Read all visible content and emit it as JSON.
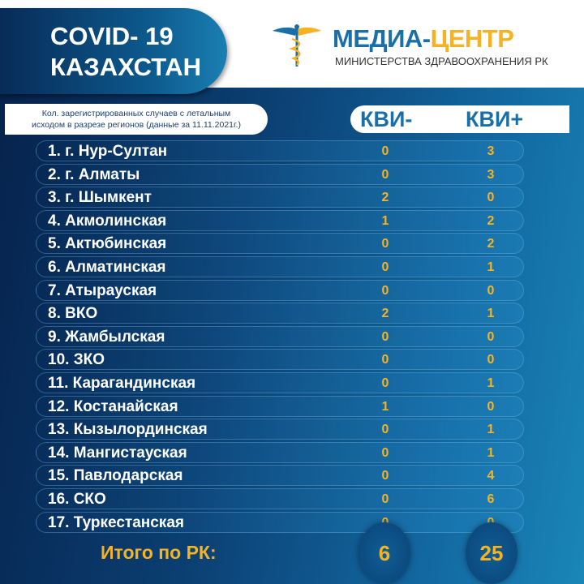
{
  "header": {
    "title_line1": "COVID- 19",
    "title_line2": "КАЗАХСТАН",
    "brand_part1": "МЕДИА-",
    "brand_part2": "ЦЕНТР",
    "brand_sub": "МИНИСТЕРСТВА ЗДРАВООХРАНЕНИЯ РК",
    "logo_icon": "caduceus-icon"
  },
  "description": {
    "line1": "Кол. зарегистрированных случаев с летальным",
    "line2": "исходом в разрезе регионов  (данные за 11.11.2021г.)"
  },
  "columns": {
    "kvi_minus": "КВИ-",
    "kvi_plus": "КВИ+"
  },
  "rows": [
    {
      "region": "1. г. Нур-Султан",
      "minus": "0",
      "plus": "3"
    },
    {
      "region": "2. г. Алматы",
      "minus": "0",
      "plus": "3"
    },
    {
      "region": "3. г. Шымкент",
      "minus": "2",
      "plus": "0"
    },
    {
      "region": "4. Акмолинская",
      "minus": "1",
      "plus": "2"
    },
    {
      "region": "5. Актюбинская",
      "minus": "0",
      "plus": "2"
    },
    {
      "region": "6. Алматинская",
      "minus": "0",
      "plus": "1"
    },
    {
      "region": "7. Атырауская",
      "minus": "0",
      "plus": "0"
    },
    {
      "region": "8. ВКО",
      "minus": "2",
      "plus": "1"
    },
    {
      "region": "9. Жамбылская",
      "minus": "0",
      "plus": "0"
    },
    {
      "region": "10. ЗКО",
      "minus": "0",
      "plus": "0"
    },
    {
      "region": "11. Карагандинская",
      "minus": "0",
      "plus": "1"
    },
    {
      "region": "12. Костанайская",
      "minus": "1",
      "plus": "0"
    },
    {
      "region": "13. Кызылординская",
      "minus": "0",
      "plus": "1"
    },
    {
      "region": "14. Мангистауская",
      "minus": "0",
      "plus": "1"
    },
    {
      "region": "15. Павлодарская",
      "minus": "0",
      "plus": "4"
    },
    {
      "region": "16. СКО",
      "minus": "0",
      "plus": "6"
    },
    {
      "region": "17. Туркестанская",
      "minus": "0",
      "plus": "0"
    }
  ],
  "total": {
    "label": "Итого по РК:",
    "minus": "6",
    "plus": "25"
  },
  "colors": {
    "accent": "#f5b324",
    "brand_blue": "#1a6fa8",
    "navy": "#06234d"
  }
}
